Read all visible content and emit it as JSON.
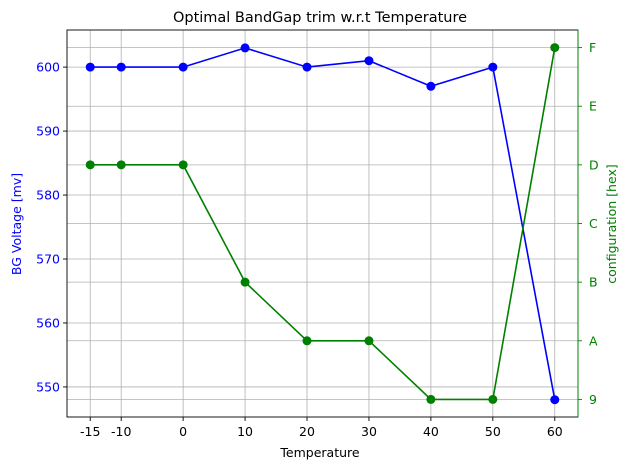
{
  "chart_data": {
    "type": "line",
    "title": "Optimal BandGap trim w.r.t  Temperature",
    "xlabel": "Temperature",
    "ylabel_left": "BG Voltage [mv]",
    "ylabel_right": "configuration [hex]",
    "x": [
      -15,
      -10,
      0,
      10,
      20,
      30,
      40,
      50,
      60
    ],
    "x_tick_labels": [
      "-15",
      "-10",
      "0",
      "10",
      "20",
      "30",
      "40",
      "50",
      "60"
    ],
    "y_left_ticks": [
      550,
      560,
      570,
      580,
      590,
      600
    ],
    "y_left_range": [
      545.3,
      605.8
    ],
    "y_right_ticks": [
      9,
      10,
      11,
      12,
      13,
      14,
      15
    ],
    "y_right_tick_labels": [
      "9",
      "A",
      "B",
      "C",
      "D",
      "E",
      "F"
    ],
    "y_right_range": [
      8.7,
      15.3
    ],
    "grid": true,
    "series": [
      {
        "axis": "left",
        "color": "#0000ff",
        "marker": "circle",
        "values": [
          600,
          600,
          600,
          603,
          600,
          601,
          597,
          600,
          548
        ]
      },
      {
        "axis": "right",
        "color": "#008000",
        "marker": "circle",
        "values": [
          13,
          13,
          13,
          11,
          10,
          10,
          9,
          9,
          15
        ]
      }
    ]
  }
}
